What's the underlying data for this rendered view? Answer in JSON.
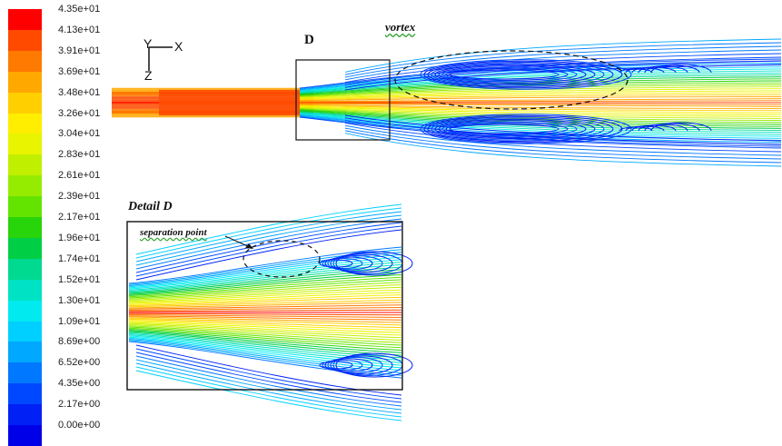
{
  "legend": {
    "labels": [
      "4.35e+01",
      "4.13e+01",
      "3.91e+01",
      "3.69e+01",
      "3.48e+01",
      "3.26e+01",
      "3.04e+01",
      "2.83e+01",
      "2.61e+01",
      "2.39e+01",
      "2.17e+01",
      "1.96e+01",
      "1.74e+01",
      "1.52e+01",
      "1.30e+01",
      "1.09e+01",
      "8.69e+00",
      "6.52e+00",
      "4.35e+00",
      "2.17e+00",
      "0.00e+00"
    ],
    "colors": [
      "#ff0000",
      "#ff4a00",
      "#ff7a00",
      "#ffa800",
      "#ffcf00",
      "#ffee00",
      "#e8f400",
      "#c0f000",
      "#96ec00",
      "#63e400",
      "#28d40a",
      "#00cf45",
      "#00d990",
      "#00e2c4",
      "#00eaf0",
      "#00d0ff",
      "#00a8ff",
      "#0078ff",
      "#0048ff",
      "#0020f5",
      "#0000e8"
    ]
  },
  "axes": {
    "y": "Y",
    "x": "X",
    "z": "Z"
  },
  "annotations": {
    "box_label": "D",
    "vortex": "vortex",
    "detail_title": "Detail D",
    "separation_point": "separation point"
  }
}
